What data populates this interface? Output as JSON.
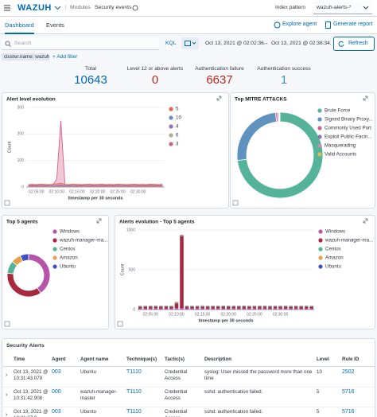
{
  "header": {
    "logo": "WAZUH",
    "breadcrumb": [
      "Modules",
      "Security events"
    ],
    "index_pattern_label": "Index pattern",
    "index_pattern": "wazuh-alerts-*"
  },
  "tabs": [
    "Dashboard",
    "Events"
  ],
  "actions": [
    "Explore agent",
    "Generate report"
  ],
  "search": {
    "placeholder": "Search",
    "language": "KQL",
    "from": "Oct 13, 2021 @ 02:02:36.",
    "arrow": "→",
    "to": "Oct 13, 2021 @ 02:36:34.",
    "refresh": "Refresh"
  },
  "filters": {
    "pill": "cluster.name: wazuh",
    "add": "+ Add filter"
  },
  "stats": [
    {
      "label": "Total",
      "value": 10643,
      "color": "#006bb4"
    },
    {
      "label": "Level 12 or above alerts",
      "value": 0,
      "color": "#bd271e"
    },
    {
      "label": "Authentication failure",
      "value": 6637,
      "color": "#bd271e"
    },
    {
      "label": "Authentication success",
      "value": 1,
      "color": "#3f8fc0"
    }
  ],
  "chart_data": [
    {
      "type": "line",
      "title": "Alert level evolution",
      "y_label": "Count",
      "x_label": "timestamp per 30 seconds",
      "categories": [
        null,
        null,
        "02:05:00",
        null,
        null,
        null,
        null,
        "02:10:00",
        null,
        null,
        null,
        null,
        "02:15:00",
        null,
        null,
        null,
        null,
        "02:20:00",
        null,
        null,
        null,
        null,
        "02:25:00",
        null,
        null,
        null,
        null,
        "02:30:00",
        null,
        null,
        null,
        null,
        null,
        null
      ],
      "ylim": [
        0,
        300
      ],
      "yticks": [
        0,
        100,
        200,
        300
      ],
      "grid": true,
      "series": [
        {
          "name": "5",
          "color": "#e7664c",
          "values": [
            9,
            10,
            9,
            11,
            10,
            9,
            10,
            12,
            14,
            10,
            9,
            11,
            10,
            9,
            10,
            11,
            9,
            10,
            11,
            9,
            10,
            9,
            11,
            10,
            9,
            10,
            11,
            9,
            10,
            9,
            11,
            10,
            9,
            10
          ]
        },
        {
          "name": "10",
          "color": "#6092c0",
          "values": [
            4,
            5,
            4,
            4,
            5,
            4,
            4,
            6,
            8,
            5,
            4,
            4,
            5,
            4,
            4,
            5,
            4,
            4,
            5,
            4,
            4,
            5,
            4,
            4,
            5,
            4,
            4,
            5,
            4,
            4,
            5,
            4,
            4,
            5
          ]
        },
        {
          "name": "4",
          "color": "#9170b8",
          "values": [
            3,
            3,
            2,
            3,
            3,
            2,
            3,
            4,
            6,
            3,
            3,
            2,
            3,
            3,
            2,
            3,
            3,
            2,
            3,
            3,
            2,
            3,
            3,
            2,
            3,
            3,
            2,
            3,
            3,
            2,
            3,
            3,
            2,
            3
          ]
        },
        {
          "name": "6",
          "color": "#b9a888",
          "values": [
            2,
            1,
            2,
            2,
            1,
            2,
            2,
            3,
            4,
            2,
            1,
            2,
            2,
            1,
            2,
            2,
            1,
            2,
            2,
            1,
            2,
            2,
            1,
            2,
            2,
            1,
            2,
            2,
            1,
            2,
            2,
            1,
            2,
            2
          ]
        },
        {
          "name": "3",
          "color": "#d36086",
          "values": [
            6,
            7,
            6,
            7,
            6,
            7,
            8,
            30,
            250,
            9,
            7,
            6,
            7,
            6,
            7,
            6,
            7,
            6,
            7,
            6,
            7,
            6,
            7,
            6,
            7,
            6,
            7,
            6,
            7,
            6,
            7,
            6,
            7,
            6
          ]
        }
      ]
    },
    {
      "type": "pie",
      "title": "Top MITRE ATT&CKS",
      "categories": [
        "Brute Force",
        "Signed Binary Proxy...",
        "Commonly Used Port",
        "Exploit Public-Facin...",
        "Masquerading",
        "Valid Accounts"
      ],
      "values": [
        6637,
        2300,
        60,
        40,
        30,
        20
      ],
      "colors": [
        "#54b399",
        "#6092c0",
        "#d36086",
        "#9170b8",
        "#ca8eae",
        "#d6bf57"
      ]
    },
    {
      "type": "pie",
      "title": "Top 5 agents",
      "categories": [
        "Windows",
        "wazuh-manager-ma...",
        "Centos",
        "Amazon",
        "Ubuntu"
      ],
      "values": [
        3800,
        3400,
        900,
        700,
        600
      ],
      "colors": [
        "#b554a8",
        "#a8283e",
        "#54b399",
        "#e7a14c",
        "#3f4fc6"
      ]
    },
    {
      "type": "bar",
      "title": "Alerts evolution - Top 5 agents",
      "y_label": "Count",
      "x_label": "timestamp per 30 seconds",
      "categories": [
        null,
        null,
        "02:05:00",
        null,
        null,
        null,
        null,
        "02:10:00",
        null,
        null,
        null,
        null,
        "02:15:00",
        null,
        null,
        null,
        null,
        "02:20:00",
        null,
        null,
        null,
        null,
        "02:25:00",
        null,
        null,
        null,
        null,
        "02:30:00",
        null,
        null,
        null,
        null,
        null,
        null
      ],
      "ylim": [
        0,
        1000
      ],
      "yticks": [
        0,
        500,
        1000
      ],
      "grid": true,
      "stacked": true,
      "series": [
        {
          "name": "Windows",
          "color": "#b554a8",
          "values": [
            14,
            15,
            14,
            16,
            15,
            14,
            15,
            18,
            20,
            15,
            14,
            16,
            15,
            14,
            15,
            16,
            14,
            15,
            16,
            14,
            15,
            14,
            16,
            15,
            14,
            15,
            16,
            14,
            15,
            14,
            16,
            15,
            14,
            15
          ]
        },
        {
          "name": "wazuh-manager-ma...",
          "color": "#a8283e",
          "values": [
            20,
            22,
            21,
            20,
            22,
            21,
            20,
            60,
            900,
            22,
            21,
            20,
            22,
            21,
            20,
            22,
            21,
            20,
            22,
            21,
            20,
            22,
            21,
            20,
            22,
            21,
            20,
            22,
            21,
            20,
            22,
            21,
            20,
            22
          ]
        },
        {
          "name": "Centos",
          "color": "#54b399",
          "values": [
            6,
            5,
            6,
            6,
            5,
            6,
            5,
            7,
            8,
            6,
            5,
            6,
            6,
            5,
            6,
            5,
            6,
            6,
            5,
            6,
            5,
            6,
            6,
            5,
            6,
            5,
            6,
            6,
            5,
            6,
            5,
            6,
            6,
            5
          ]
        },
        {
          "name": "Amazon",
          "color": "#e7a14c",
          "values": [
            4,
            4,
            5,
            4,
            4,
            5,
            4,
            5,
            6,
            4,
            4,
            5,
            4,
            4,
            5,
            4,
            4,
            5,
            4,
            4,
            5,
            4,
            4,
            5,
            4,
            4,
            5,
            4,
            4,
            5,
            4,
            4,
            5,
            4
          ]
        },
        {
          "name": "Ubuntu",
          "color": "#3f4fc6",
          "values": [
            3,
            3,
            3,
            4,
            3,
            3,
            3,
            4,
            5,
            3,
            3,
            3,
            4,
            3,
            3,
            3,
            4,
            3,
            3,
            3,
            4,
            3,
            3,
            3,
            4,
            3,
            3,
            3,
            4,
            3,
            3,
            3,
            4,
            3
          ]
        }
      ]
    }
  ],
  "table": {
    "title": "Security Alerts",
    "columns": [
      "Time",
      "Agent",
      "Agent name",
      "Technique(s)",
      "Tactic(s)",
      "Description",
      "Level",
      "Rule ID"
    ],
    "rows": [
      [
        "Oct 13, 2021 @ 10:31:43.079",
        "003",
        "Ubuntu",
        "T1110",
        "Credential Access",
        "syslog: User missed the password more than one time",
        "10",
        "2502"
      ],
      [
        "Oct 13, 2021 @ 10:31:42.908",
        "000",
        "wazuh-manager-master",
        "T1110",
        "Credential Access",
        "sshd: authentication failed.",
        "5",
        "5716"
      ],
      [
        "Oct 13, 2021 @ 10:31:37.0",
        "003",
        "Ubuntu",
        "T1110",
        "Credential Access",
        "sshd: authentication failed.",
        "5",
        "5716"
      ]
    ]
  }
}
